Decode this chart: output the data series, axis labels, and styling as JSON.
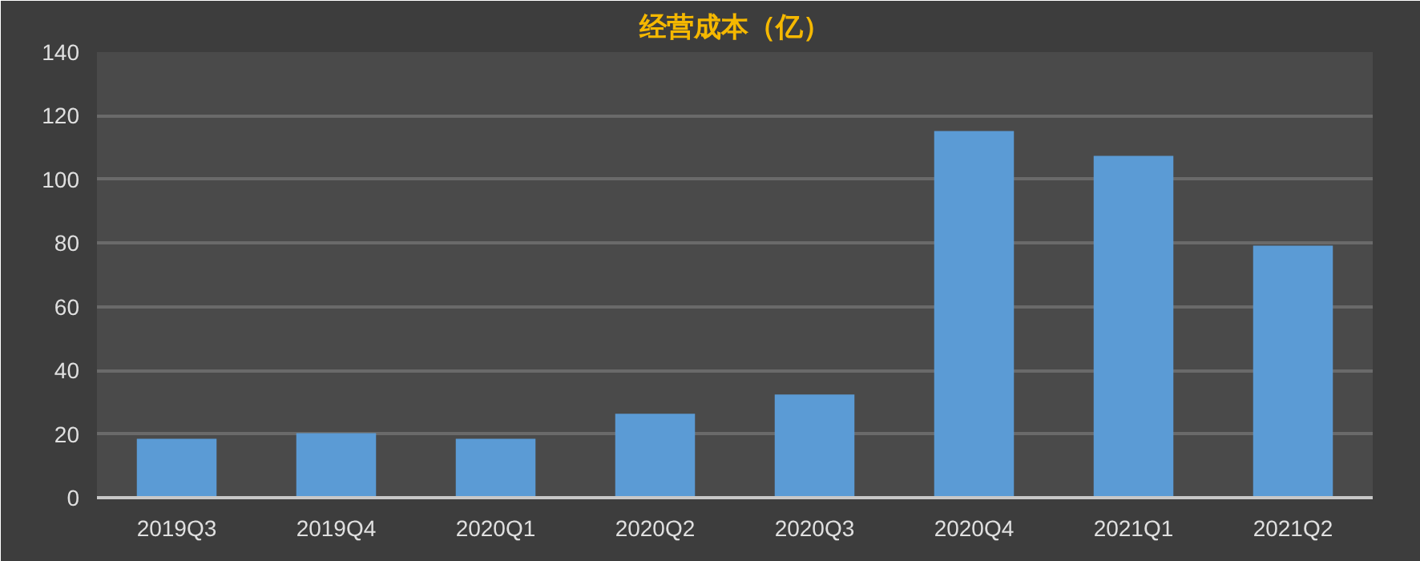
{
  "chart_data": {
    "type": "bar",
    "title": "经营成本（亿）",
    "categories": [
      "2019Q3",
      "2019Q4",
      "2020Q1",
      "2020Q2",
      "2020Q3",
      "2020Q4",
      "2021Q1",
      "2021Q2"
    ],
    "values": [
      18.5,
      20.3,
      18.5,
      26.4,
      32.4,
      115.2,
      107.4,
      79.2
    ],
    "color": "#5b9bd5",
    "ylim": [
      0,
      140
    ],
    "yticks": [
      0,
      20,
      40,
      60,
      80,
      100,
      120,
      140
    ],
    "grid": "y"
  }
}
